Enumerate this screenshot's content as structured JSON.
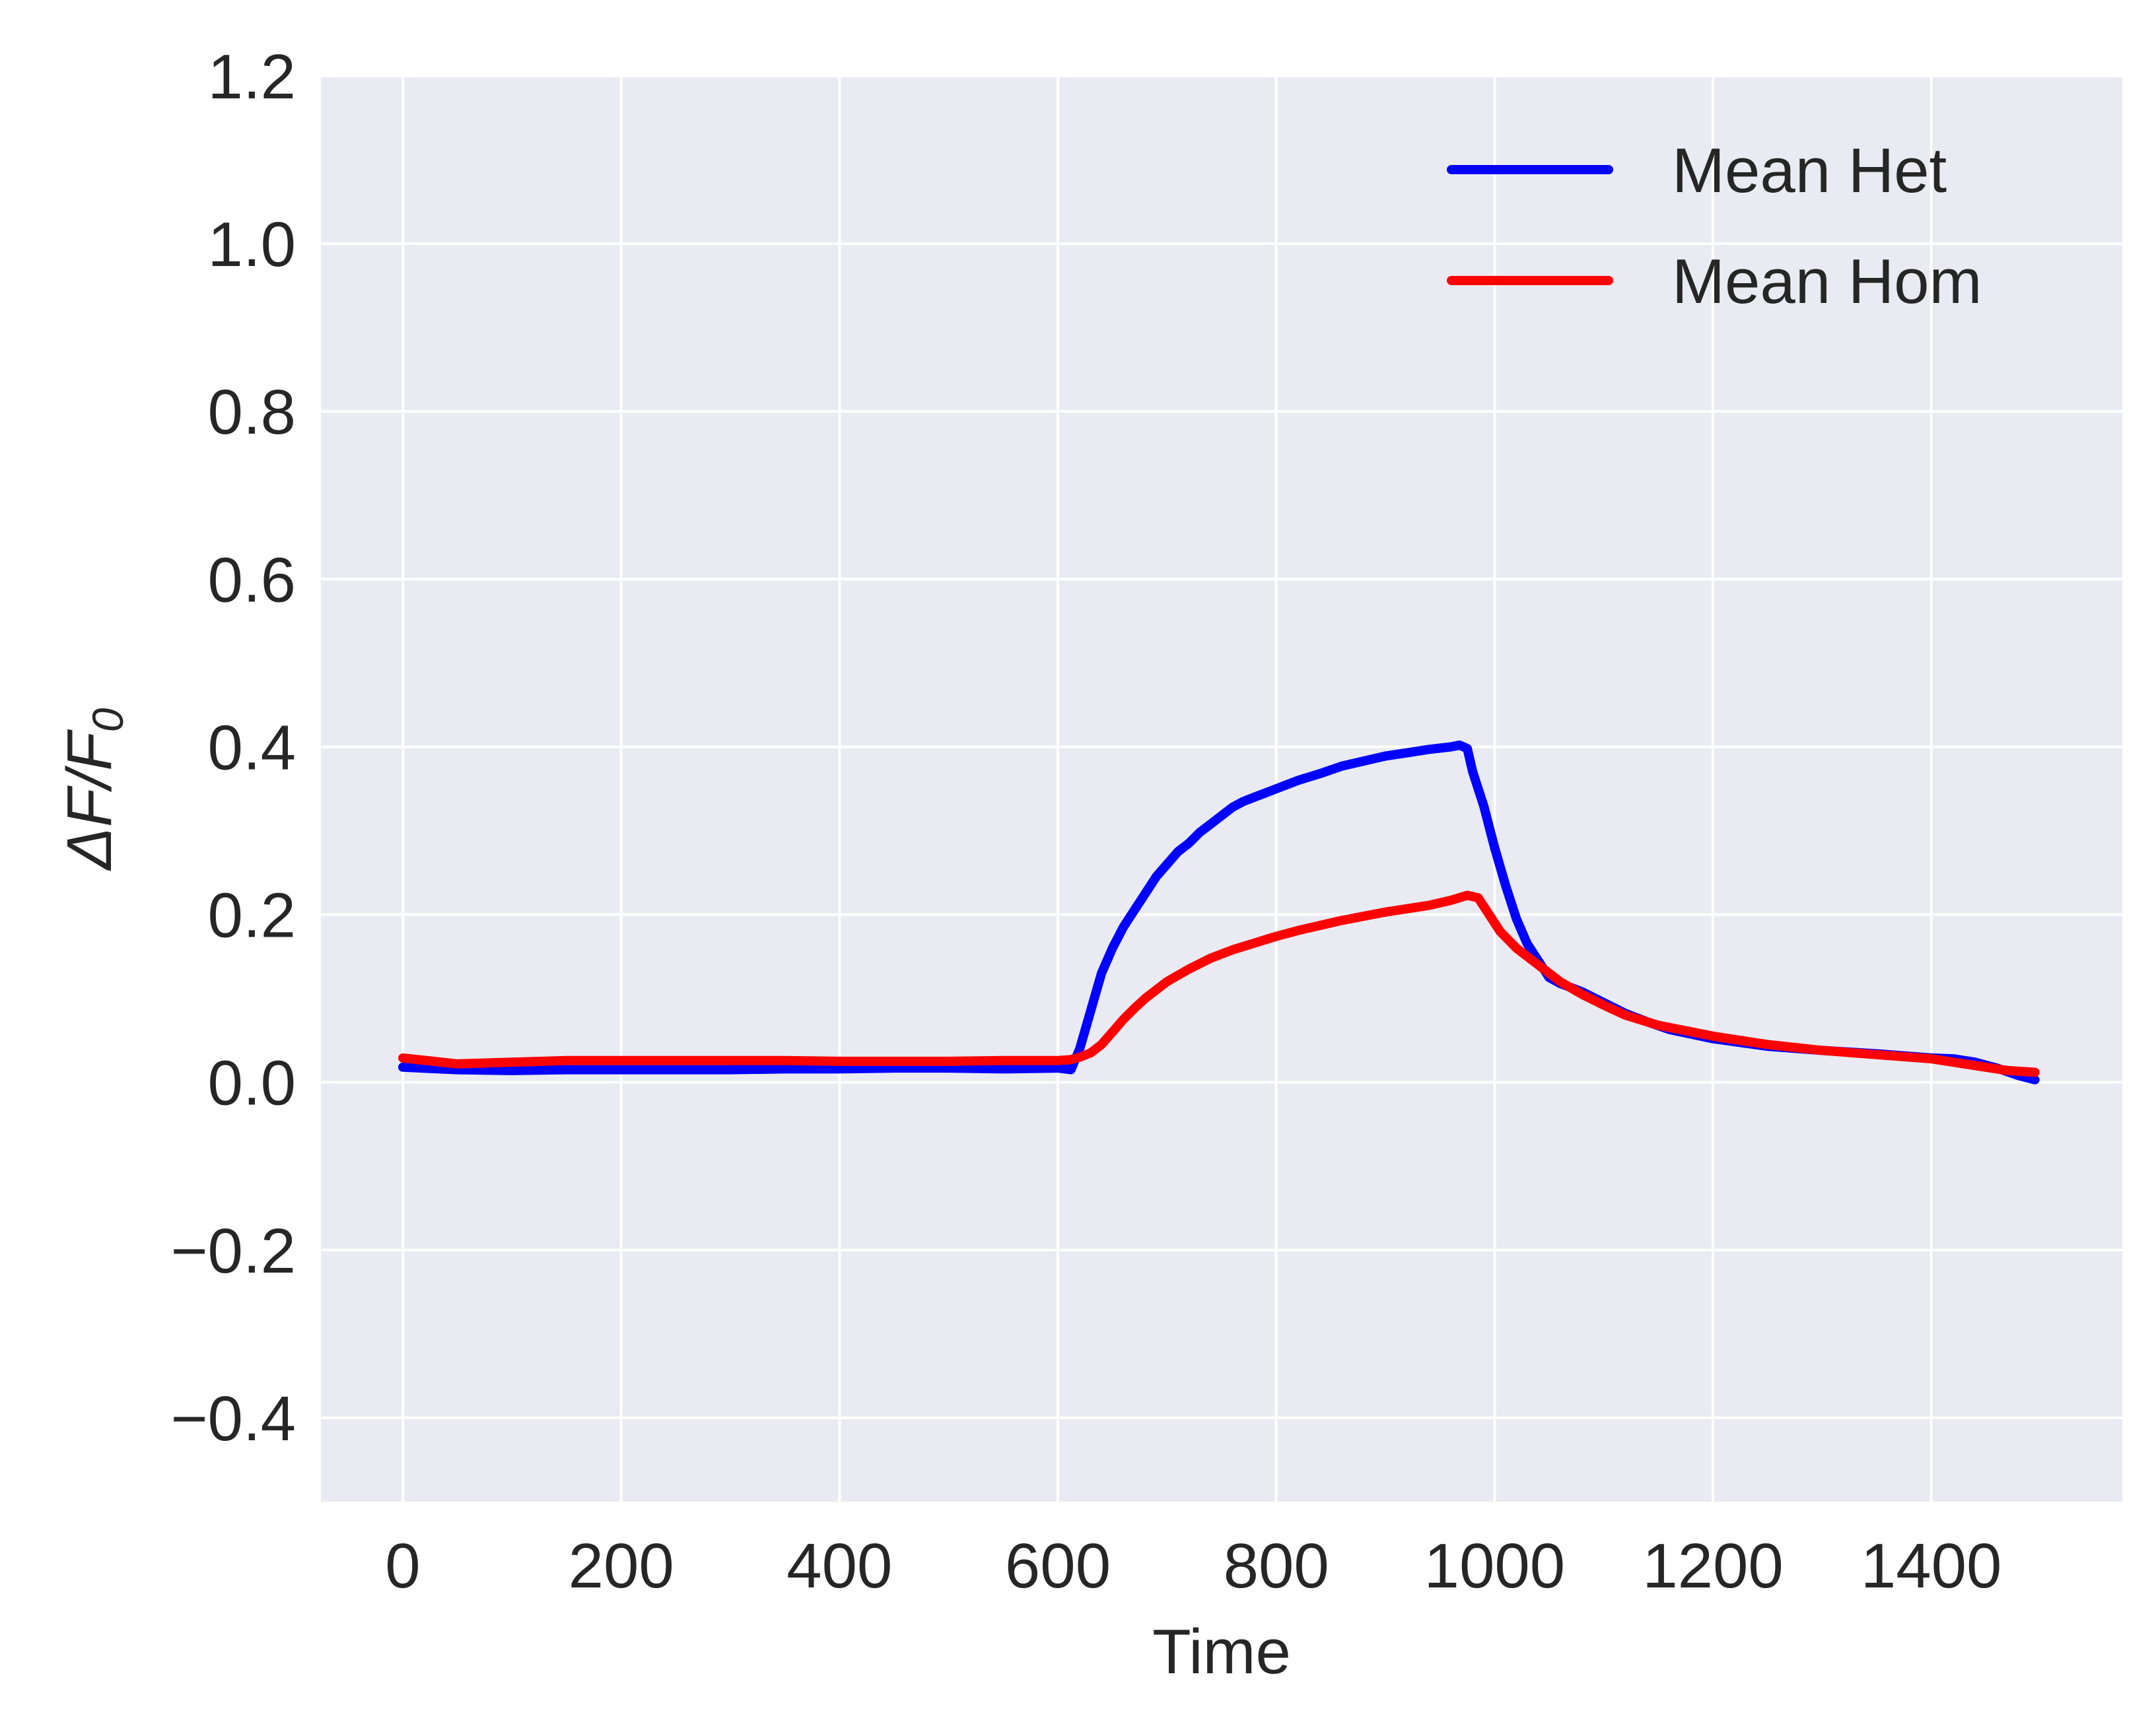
{
  "chart_data": {
    "type": "line",
    "xlabel": "Time",
    "ylabel_base": "ΔF/F",
    "ylabel_sub": "0",
    "xlim": [
      -75,
      1575
    ],
    "ylim": [
      -0.5,
      1.2
    ],
    "xticks": [
      0,
      200,
      400,
      600,
      800,
      1000,
      1200,
      1400
    ],
    "xtick_labels": [
      "0",
      "200",
      "400",
      "600",
      "800",
      "1000",
      "1200",
      "1400"
    ],
    "yticks": [
      -0.4,
      -0.2,
      0.0,
      0.2,
      0.4,
      0.6,
      0.8,
      1.0,
      1.2
    ],
    "ytick_labels": [
      "−0.4",
      "−0.2",
      "0.0",
      "0.2",
      "0.4",
      "0.6",
      "0.8",
      "1.0",
      "1.2"
    ],
    "grid": true,
    "legend_position": "top-right",
    "series": [
      {
        "name": "Mean Het",
        "color": "#0000ff",
        "x": [
          0,
          50,
          100,
          150,
          200,
          250,
          300,
          350,
          400,
          450,
          500,
          550,
          600,
          612,
          620,
          630,
          640,
          650,
          660,
          670,
          680,
          690,
          700,
          710,
          720,
          730,
          740,
          750,
          760,
          770,
          780,
          790,
          800,
          820,
          840,
          860,
          880,
          900,
          920,
          940,
          960,
          968,
          975,
          980,
          990,
          1000,
          1010,
          1020,
          1030,
          1040,
          1050,
          1060,
          1080,
          1100,
          1120,
          1140,
          1160,
          1200,
          1250,
          1300,
          1350,
          1400,
          1420,
          1440,
          1460,
          1480,
          1495
        ],
        "y": [
          0.018,
          0.015,
          0.014,
          0.015,
          0.015,
          0.015,
          0.015,
          0.016,
          0.016,
          0.017,
          0.017,
          0.016,
          0.017,
          0.015,
          0.04,
          0.085,
          0.13,
          0.16,
          0.185,
          0.205,
          0.225,
          0.245,
          0.26,
          0.275,
          0.285,
          0.298,
          0.308,
          0.318,
          0.328,
          0.335,
          0.34,
          0.345,
          0.35,
          0.36,
          0.368,
          0.377,
          0.383,
          0.389,
          0.393,
          0.397,
          0.4,
          0.402,
          0.398,
          0.37,
          0.33,
          0.28,
          0.235,
          0.195,
          0.165,
          0.145,
          0.125,
          0.118,
          0.108,
          0.095,
          0.082,
          0.072,
          0.063,
          0.052,
          0.043,
          0.038,
          0.034,
          0.029,
          0.028,
          0.024,
          0.017,
          0.008,
          0.003
        ]
      },
      {
        "name": "Mean Hom",
        "color": "#ff0000",
        "x": [
          0,
          50,
          100,
          150,
          200,
          250,
          300,
          350,
          400,
          450,
          500,
          550,
          600,
          612,
          620,
          630,
          640,
          650,
          660,
          670,
          680,
          700,
          720,
          740,
          760,
          780,
          800,
          820,
          840,
          860,
          880,
          900,
          920,
          940,
          960,
          975,
          985,
          995,
          1005,
          1020,
          1040,
          1060,
          1080,
          1100,
          1120,
          1150,
          1200,
          1250,
          1300,
          1350,
          1400,
          1440,
          1470,
          1495
        ],
        "y": [
          0.029,
          0.022,
          0.024,
          0.026,
          0.026,
          0.026,
          0.026,
          0.026,
          0.025,
          0.025,
          0.025,
          0.026,
          0.026,
          0.027,
          0.03,
          0.035,
          0.045,
          0.06,
          0.075,
          0.088,
          0.1,
          0.12,
          0.135,
          0.148,
          0.158,
          0.166,
          0.174,
          0.181,
          0.187,
          0.193,
          0.198,
          0.203,
          0.207,
          0.211,
          0.217,
          0.223,
          0.22,
          0.2,
          0.18,
          0.16,
          0.14,
          0.12,
          0.105,
          0.092,
          0.08,
          0.068,
          0.055,
          0.045,
          0.038,
          0.033,
          0.028,
          0.02,
          0.014,
          0.012
        ]
      }
    ]
  }
}
